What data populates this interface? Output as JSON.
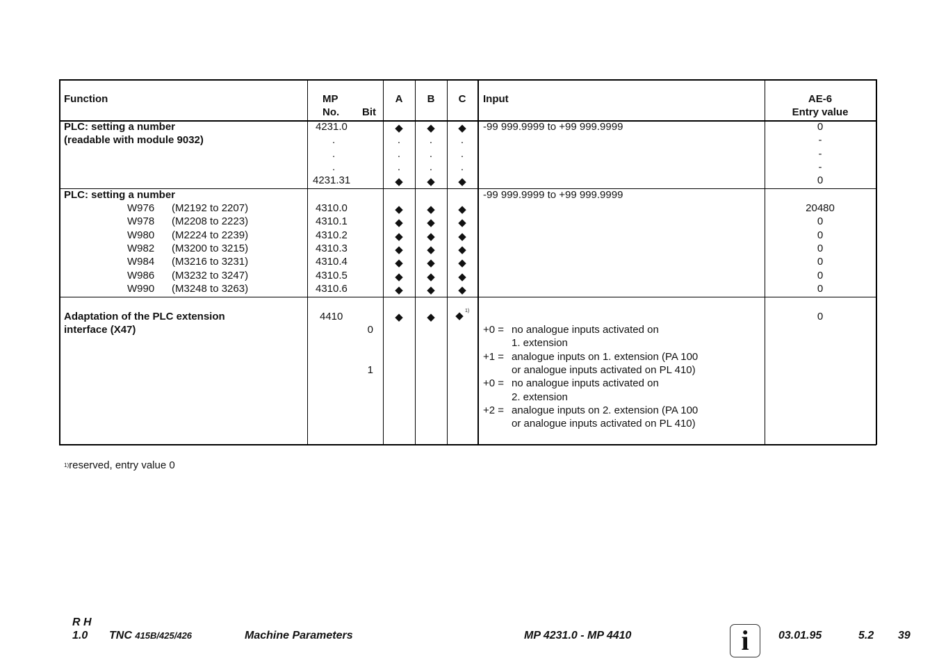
{
  "header": {
    "function": "Function",
    "mp": "MP",
    "no": "No.",
    "bit": "Bit",
    "a": "A",
    "b": "B",
    "c": "C",
    "input": "Input",
    "ae6": "AE-6",
    "entry": "Entry value"
  },
  "row1": {
    "func": [
      "PLC: setting a number",
      "(readable with module 9032)"
    ],
    "mp": [
      "4231.0",
      ".",
      ".",
      ".",
      "4231.31"
    ],
    "marks": [
      "◆",
      ".",
      ".",
      ".",
      "◆"
    ],
    "input": "-99 999.9999 to +99 999.9999",
    "values": [
      "0",
      "-",
      "-",
      "-",
      "0"
    ]
  },
  "row2": {
    "func": "PLC: setting a number",
    "input": "-99 999.9999 to +99 999.9999",
    "items": [
      {
        "w": "W976",
        "range": "(M2192 to 2207)",
        "mp": "4310.0",
        "value": "20480"
      },
      {
        "w": "W978",
        "range": "(M2208 to 2223)",
        "mp": "4310.1",
        "value": "0"
      },
      {
        "w": "W980",
        "range": "(M2224 to 2239)",
        "mp": "4310.2",
        "value": "0"
      },
      {
        "w": "W982",
        "range": "(M3200 to 3215)",
        "mp": "4310.3",
        "value": "0"
      },
      {
        "w": "W984",
        "range": "(M3216 to 3231)",
        "mp": "4310.4",
        "value": "0"
      },
      {
        "w": "W986",
        "range": "(M3232 to 3247)",
        "mp": "4310.5",
        "value": "0"
      },
      {
        "w": "W990",
        "range": "(M3248 to 3263)",
        "mp": "4310.6",
        "value": "0"
      }
    ],
    "mark": "◆"
  },
  "row3": {
    "func": [
      "Adaptation of the PLC extension",
      "interface (X47)"
    ],
    "mp": "4410",
    "bits": [
      "0",
      "1"
    ],
    "mark": "◆",
    "footref": "1)",
    "value": "0",
    "input": [
      [
        "+0 =",
        "no analogue inputs activated on"
      ],
      [
        "",
        "1. extension"
      ],
      [
        "+1 =",
        "analogue inputs on 1. extension (PA 100"
      ],
      [
        "",
        "or analogue inputs activated on PL 410)"
      ],
      [
        "+0 =",
        "no analogue inputs activated on"
      ],
      [
        "",
        "2. extension"
      ],
      [
        "+2 =",
        "analogue inputs on 2. extension (PA 100"
      ],
      [
        "",
        "or analogue inputs activated on PL 410)"
      ]
    ]
  },
  "footnote": {
    "ref": "1)",
    "text": "reserved, entry value 0"
  },
  "footer": {
    "rh": "R H",
    "version": "1.0",
    "tnc": "TNC",
    "models": "415B/425/426",
    "title": "Machine Parameters",
    "range": "MP 4231.0 - MP 4410",
    "info": "i",
    "date": "03.01.95",
    "section": "5.2",
    "page": "39"
  }
}
